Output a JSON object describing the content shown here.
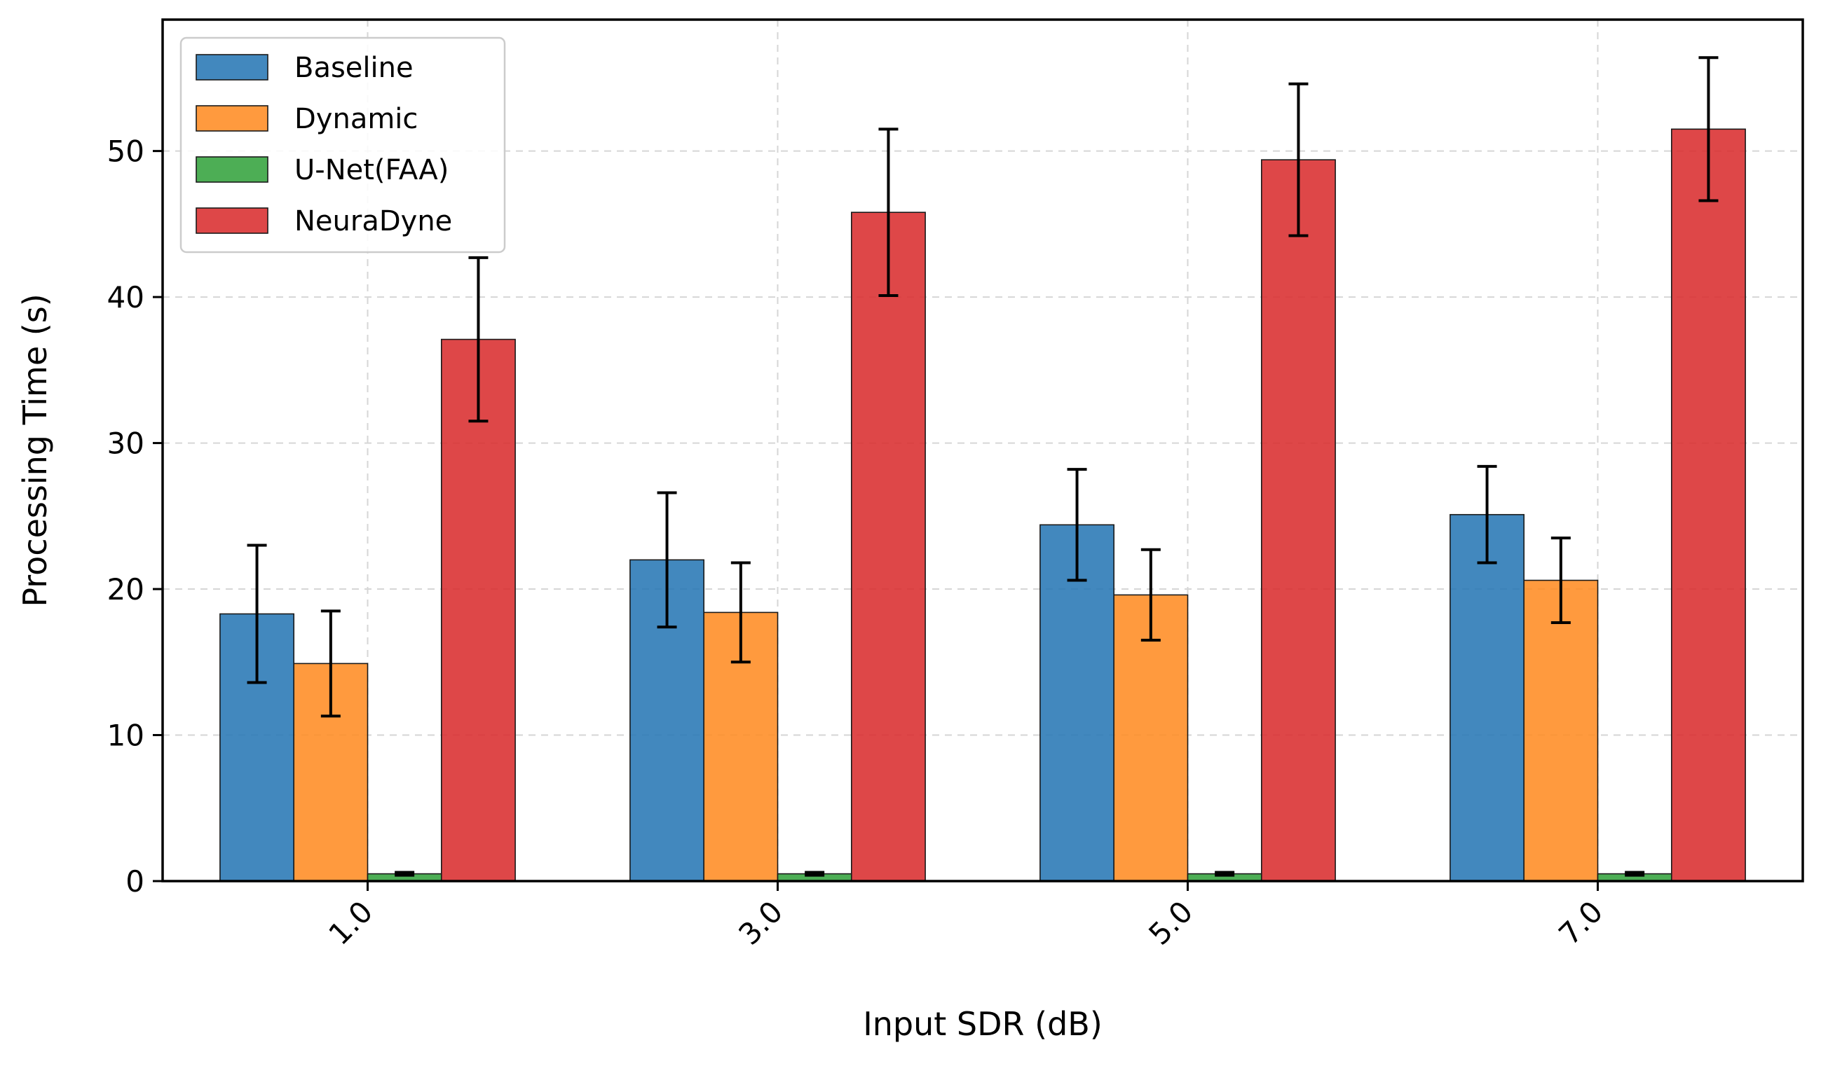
{
  "chart_data": {
    "type": "bar",
    "title": "",
    "xlabel": "Input SDR (dB)",
    "ylabel": "Processing Time (s)",
    "categories": [
      "1.0",
      "3.0",
      "5.0",
      "7.0"
    ],
    "ylim": [
      0,
      59
    ],
    "yticks": [
      "0",
      "10",
      "20",
      "30",
      "40",
      "50"
    ],
    "grid": true,
    "legend_position": "top-left",
    "series": [
      {
        "name": "Baseline",
        "color": "#2878b5",
        "values": [
          18.3,
          22.0,
          24.4,
          25.1
        ],
        "errors": [
          4.7,
          4.6,
          3.8,
          3.3
        ]
      },
      {
        "name": "Dynamic",
        "color": "#ff8c23",
        "values": [
          14.9,
          18.4,
          19.6,
          20.6
        ],
        "errors": [
          3.6,
          3.4,
          3.1,
          2.9
        ]
      },
      {
        "name": "U-Net(FAA)",
        "color": "#34a33e",
        "values": [
          0.5,
          0.5,
          0.5,
          0.5
        ],
        "errors": [
          0.1,
          0.1,
          0.1,
          0.1
        ]
      },
      {
        "name": "NeuraDyne",
        "color": "#d92d2f",
        "values": [
          37.1,
          45.8,
          49.4,
          51.5
        ],
        "errors": [
          5.6,
          5.7,
          5.2,
          4.9
        ]
      }
    ]
  }
}
